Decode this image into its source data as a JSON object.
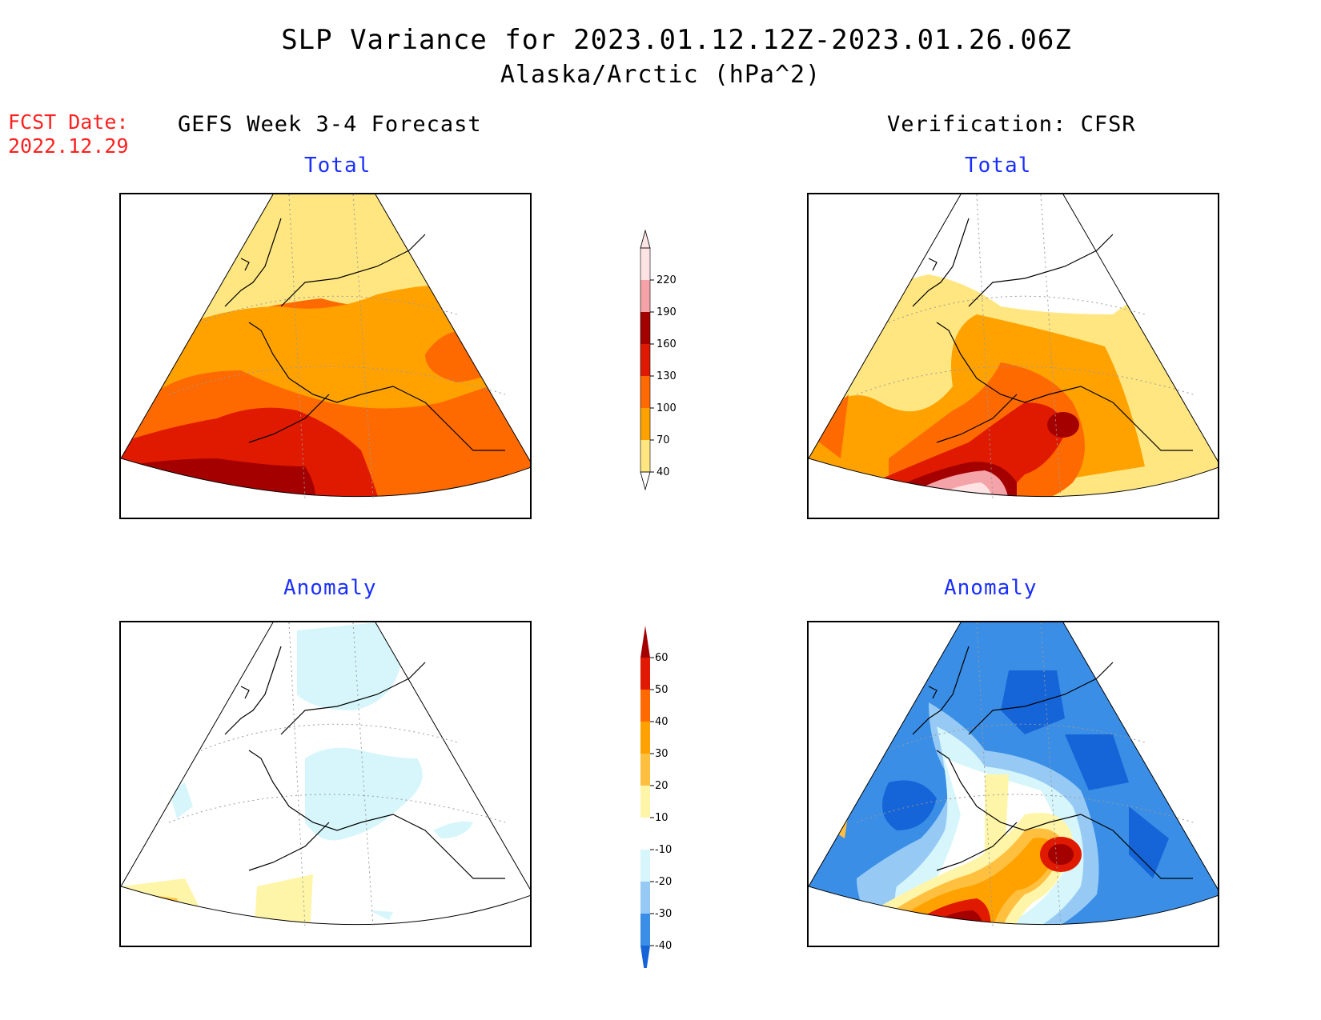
{
  "title": {
    "line1": "SLP Variance for 2023.01.12.12Z-2023.01.26.06Z",
    "line2": "Alaska/Arctic (hPa^2)"
  },
  "fcst": {
    "label": "FCST Date:",
    "date": "2022.12.29"
  },
  "columns": {
    "left_header": "GEFS Week 3-4 Forecast",
    "right_header": "Verification: CFSR"
  },
  "panels": {
    "top_left_title": "Total",
    "top_right_title": "Total",
    "bottom_left_title": "Anomaly",
    "bottom_right_title": "Anomaly"
  },
  "total_colorbar": {
    "labels": [
      "40",
      "70",
      "100",
      "130",
      "160",
      "190",
      "220"
    ],
    "colors": [
      "#ffe680",
      "#ffa200",
      "#ff6a00",
      "#e01a00",
      "#a50000",
      "#f4a3a8",
      "#fde3e3"
    ]
  },
  "anomaly_colorbar": {
    "labels": [
      "-40",
      "-30",
      "-20",
      "-10",
      "10",
      "20",
      "30",
      "40",
      "50",
      "60"
    ],
    "colors": [
      "#1565d8",
      "#3a8ee6",
      "#96caf5",
      "#d6f6fb",
      "#ffffff",
      "#fff5a8",
      "#ffc040",
      "#ffa200",
      "#ff6a00",
      "#e01a00",
      "#a50000"
    ]
  }
}
